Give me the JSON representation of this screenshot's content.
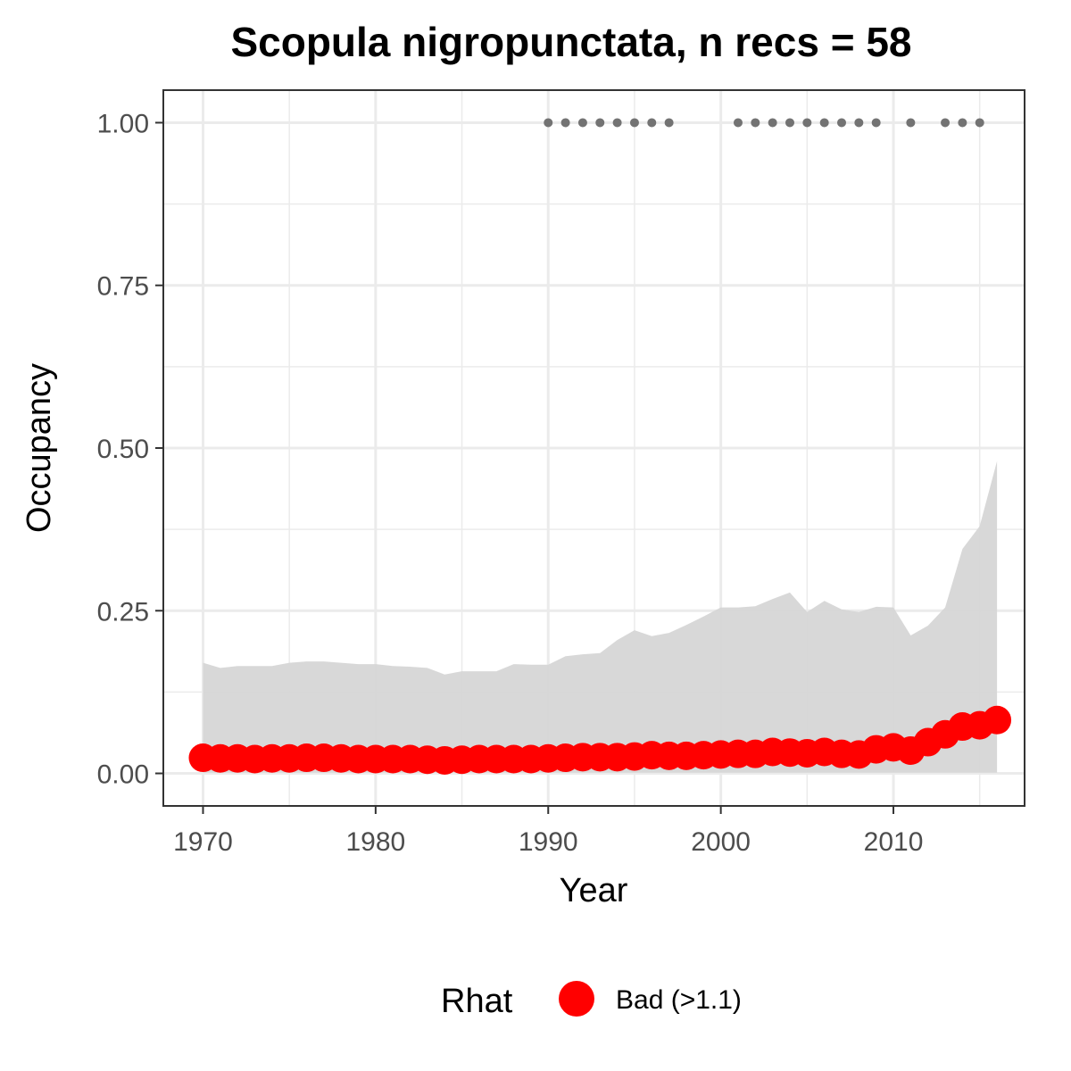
{
  "chart_data": {
    "type": "line",
    "title": "Scopula nigropunctata, n recs = 58",
    "xlabel": "Year",
    "ylabel": "Occupancy",
    "xlim": [
      1967.7,
      2017.6
    ],
    "ylim": [
      -0.05,
      1.05
    ],
    "x_ticks": [
      1970,
      1980,
      1990,
      2000,
      2010
    ],
    "y_ticks": [
      0,
      0.25,
      0.5,
      0.75,
      1
    ],
    "y_tick_labels": [
      "0.00",
      "0.25",
      "0.50",
      "0.75",
      "1.00"
    ],
    "grid": true,
    "legend": {
      "position": "bottom",
      "title": "Rhat",
      "label": "Bad (>1.1)"
    },
    "colors": {
      "series": "#ff0000",
      "ribbon": "#d6d6d6",
      "records": "#737373",
      "grid": "#ebebeb"
    },
    "years": [
      1970,
      1971,
      1972,
      1973,
      1974,
      1975,
      1976,
      1977,
      1978,
      1979,
      1980,
      1981,
      1982,
      1983,
      1984,
      1985,
      1986,
      1987,
      1988,
      1989,
      1990,
      1991,
      1992,
      1993,
      1994,
      1995,
      1996,
      1997,
      1998,
      1999,
      2000,
      2001,
      2002,
      2003,
      2004,
      2005,
      2006,
      2007,
      2008,
      2009,
      2010,
      2011,
      2012,
      2013,
      2014,
      2015,
      2016
    ],
    "occupancy_mean": [
      0.024,
      0.023,
      0.023,
      0.022,
      0.023,
      0.023,
      0.024,
      0.024,
      0.023,
      0.022,
      0.022,
      0.022,
      0.022,
      0.021,
      0.02,
      0.021,
      0.022,
      0.022,
      0.022,
      0.022,
      0.023,
      0.024,
      0.025,
      0.025,
      0.025,
      0.026,
      0.028,
      0.027,
      0.027,
      0.028,
      0.029,
      0.03,
      0.03,
      0.033,
      0.032,
      0.031,
      0.033,
      0.03,
      0.029,
      0.037,
      0.04,
      0.035,
      0.048,
      0.06,
      0.072,
      0.074,
      0.082
    ],
    "upper_ci": [
      0.17,
      0.162,
      0.165,
      0.165,
      0.165,
      0.17,
      0.172,
      0.172,
      0.17,
      0.168,
      0.168,
      0.165,
      0.164,
      0.162,
      0.152,
      0.157,
      0.157,
      0.157,
      0.168,
      0.167,
      0.167,
      0.18,
      0.183,
      0.185,
      0.205,
      0.22,
      0.211,
      0.216,
      0.228,
      0.241,
      0.255,
      0.255,
      0.257,
      0.268,
      0.278,
      0.248,
      0.265,
      0.252,
      0.248,
      0.256,
      0.255,
      0.212,
      0.227,
      0.255,
      0.345,
      0.38,
      0.48
    ],
    "lower_ci": [
      0.001,
      0.001,
      0.001,
      0.001,
      0.001,
      0.001,
      0.001,
      0.001,
      0.001,
      0.001,
      0.001,
      0.001,
      0.001,
      0.001,
      0.001,
      0.001,
      0.001,
      0.001,
      0.001,
      0.001,
      0.001,
      0.001,
      0.001,
      0.001,
      0.001,
      0.001,
      0.001,
      0.001,
      0.001,
      0.001,
      0.001,
      0.001,
      0.001,
      0.001,
      0.001,
      0.001,
      0.001,
      0.001,
      0.001,
      0.001,
      0.001,
      0.001,
      0.001,
      0.001,
      0.001,
      0.001,
      0.001
    ],
    "record_years": [
      1990,
      1991,
      1992,
      1993,
      1994,
      1995,
      1996,
      1997,
      2001,
      2002,
      2003,
      2004,
      2005,
      2006,
      2007,
      2008,
      2009,
      2011,
      2013,
      2014,
      2015
    ],
    "record_value": 1
  }
}
